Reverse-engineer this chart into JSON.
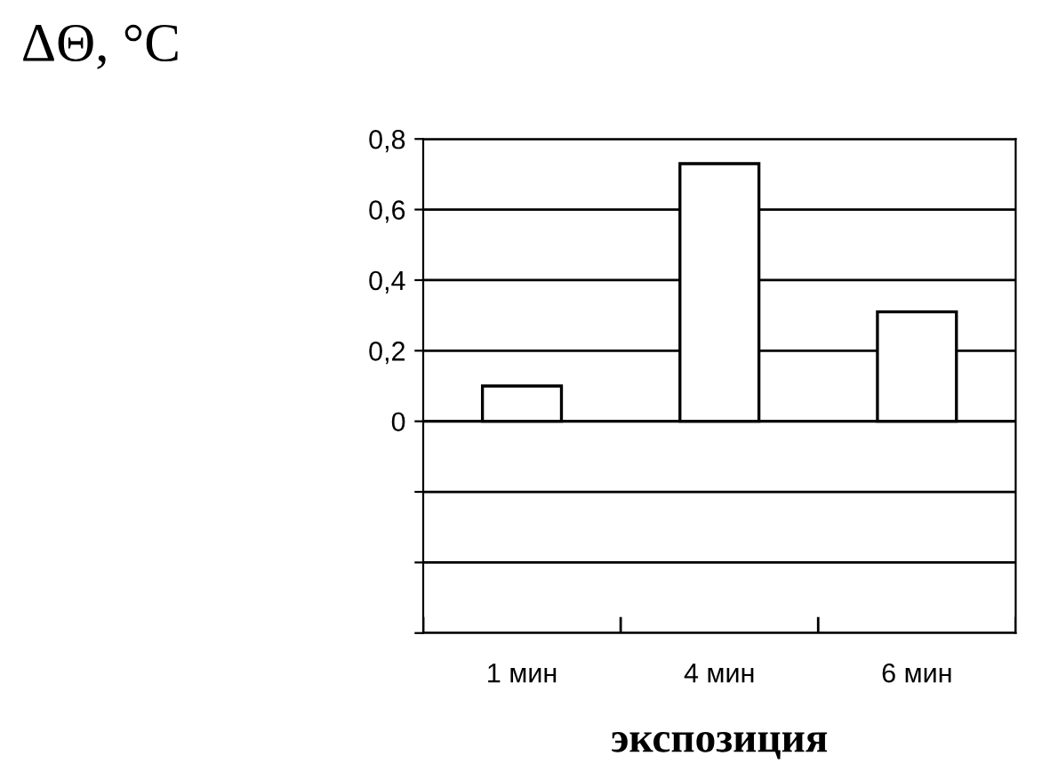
{
  "chart_data": {
    "type": "bar",
    "ylabel": "ΔΘ, °C",
    "xlabel": "экспозиция",
    "categories": [
      "1 мин",
      "4 мин",
      "6 мин"
    ],
    "values": [
      0.1,
      0.73,
      0.31
    ],
    "color": "#ffffff",
    "ylim": [
      -0.6,
      0.8
    ],
    "yticks": [
      {
        "value": -0.6,
        "label": null
      },
      {
        "value": -0.4,
        "label": null
      },
      {
        "value": -0.2,
        "label": null
      },
      {
        "value": 0,
        "label": "0"
      },
      {
        "value": 0.2,
        "label": "0,2"
      },
      {
        "value": 0.4,
        "label": "0,4"
      },
      {
        "value": 0.6,
        "label": "0,6"
      },
      {
        "value": 0.8,
        "label": "0,8"
      }
    ],
    "grid": "y",
    "legend": false
  }
}
